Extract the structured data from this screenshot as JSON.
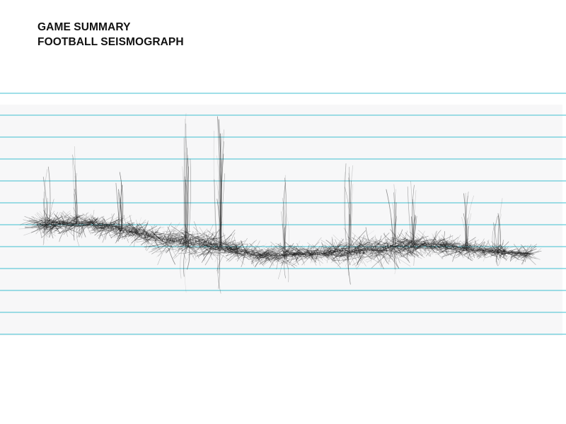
{
  "header": {
    "line1": "GAME SUMMARY",
    "line2": "FOOTBALL SEISMOGRAPH"
  },
  "colors": {
    "background": "#ffffff",
    "band": "#f7f7f8",
    "staff_lines": "#3fbfd0",
    "trace": "#111111",
    "title": "#111111"
  },
  "chart_data": {
    "type": "seismograph",
    "staff_line_count": 12,
    "segments": [
      {
        "start": 0.0,
        "end": 0.25,
        "activity": 0.55
      },
      {
        "start": 0.25,
        "end": 0.38,
        "activity": 1.0
      },
      {
        "start": 0.38,
        "end": 0.5,
        "activity": 0.45
      },
      {
        "start": 0.5,
        "end": 0.62,
        "activity": 0.5
      },
      {
        "start": 0.62,
        "end": 0.75,
        "activity": 0.95
      },
      {
        "start": 0.75,
        "end": 0.86,
        "activity": 0.5
      },
      {
        "start": 0.86,
        "end": 1.0,
        "activity": 0.3
      }
    ],
    "spikes": [
      {
        "t": 0.02,
        "amplitude": 0.45
      },
      {
        "t": 0.08,
        "amplitude": 0.55
      },
      {
        "t": 0.17,
        "amplitude": 0.4
      },
      {
        "t": 0.3,
        "amplitude": 1.0
      },
      {
        "t": 0.37,
        "amplitude": 0.9
      },
      {
        "t": 0.5,
        "amplitude": 0.55
      },
      {
        "t": 0.63,
        "amplitude": 0.65
      },
      {
        "t": 0.72,
        "amplitude": 0.5
      },
      {
        "t": 0.76,
        "amplitude": 0.45
      },
      {
        "t": 0.87,
        "amplitude": 0.4
      },
      {
        "t": 0.93,
        "amplitude": 0.35
      }
    ]
  }
}
